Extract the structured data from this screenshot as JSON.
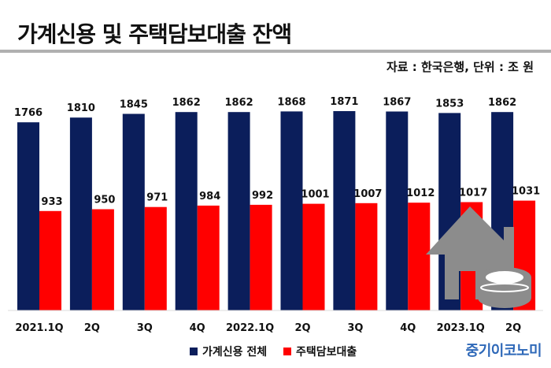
{
  "header": {
    "title": "가계신용 및 주택담보대출 잔액",
    "source": "자료 : 한국은행, 단위 : 조 원"
  },
  "brand": "중기이코노미",
  "colors": {
    "household": "#0b1e5b",
    "mortgage": "#ff0000",
    "house_icon": "#8c8c8c"
  },
  "icons": [
    "house-icon",
    "coin-stack-icon"
  ],
  "chart_data": {
    "type": "bar",
    "categories": [
      "2021.1Q",
      "2Q",
      "3Q",
      "4Q",
      "2022.1Q",
      "2Q",
      "3Q",
      "4Q",
      "2023.1Q",
      "2Q"
    ],
    "series": [
      {
        "name": "가계신용 전체",
        "values": [
          1766,
          1810,
          1845,
          1862,
          1862,
          1868,
          1871,
          1867,
          1853,
          1862
        ]
      },
      {
        "name": "주택담보대출",
        "values": [
          933,
          950,
          971,
          984,
          992,
          1001,
          1007,
          1012,
          1017,
          1031
        ]
      }
    ],
    "xlabel": "",
    "ylabel": "",
    "ylim": [
      0,
      2000
    ],
    "grid": false,
    "legend": "bottom"
  }
}
